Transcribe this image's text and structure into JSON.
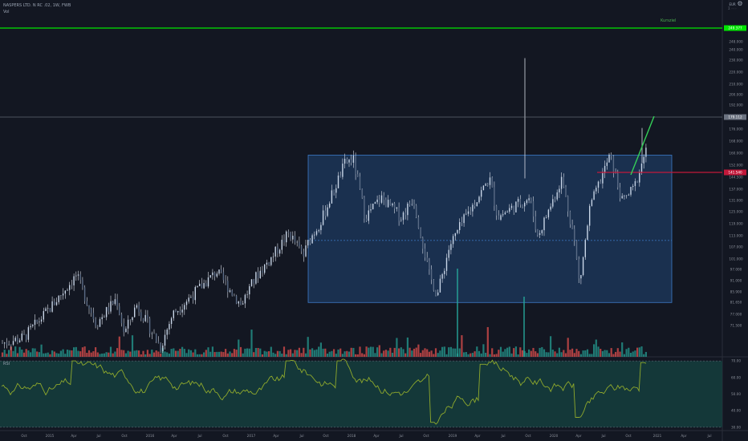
{
  "header": {
    "symbol": "NASPERS LTD. N RC .02, 1W, FWB",
    "volume_label": "Vol"
  },
  "rsi_label": "RSI",
  "currency": {
    "line1": "EUR",
    "line2": "Σ ◦◦◦"
  },
  "kursziel_label": "Kursziel",
  "colors": {
    "background": "#131722",
    "green_line": "#00e600",
    "red_line": "#c2183a",
    "box_fill": "#1e3a5f",
    "box_border": "#3d7cc9",
    "up": "#26a69a",
    "down": "#ef5350",
    "rsi_line": "#8fa92c",
    "rsi_fill": "#153c3c"
  },
  "price_axis": {
    "labels": [
      "248.000",
      "240.000",
      "230.000",
      "220.000",
      "210.000",
      "200.000",
      "192.000",
      "184.000",
      "176.000",
      "168.000",
      "160.000",
      "152.000",
      "144.500",
      "137.000",
      "131.000",
      "125.000",
      "119.000",
      "113.000",
      "107.000",
      "101.000",
      "97.000",
      "91.000",
      "85.900",
      "81.650",
      "77.000",
      "71.500"
    ],
    "badges": [
      {
        "text": "249.377",
        "color": "#00e600"
      },
      {
        "text": "179.112",
        "color": "#6b7280"
      },
      {
        "text": "141.540",
        "color": "#c2183a"
      }
    ]
  },
  "rsi_axis": {
    "labels": [
      "70.00",
      "60.00",
      "50.00",
      "40.00",
      "30.00"
    ]
  },
  "time_axis": {
    "labels": [
      "Oct",
      "2015",
      "Apr",
      "Jul",
      "Oct",
      "2016",
      "Apr",
      "Jul",
      "Oct",
      "2017",
      "Apr",
      "Jul",
      "Oct",
      "2018",
      "Apr",
      "Jul",
      "Oct",
      "2019",
      "Apr",
      "Jul",
      "Oct",
      "2020",
      "Apr",
      "Jul",
      "Oct",
      "2021",
      "Apr",
      "Jul"
    ]
  },
  "chart_data": {
    "type": "candlestick",
    "x_range": [
      "2014-09",
      "2021-08"
    ],
    "y_range": [
      68,
      252
    ],
    "horizontal_levels": [
      {
        "price": 249.377,
        "label": "Kursziel",
        "color": "#00e600"
      },
      {
        "price": 179.112,
        "color": "#6b7280"
      },
      {
        "price": 141.54,
        "color": "#c2183a"
      }
    ],
    "range_box": {
      "from": "2017-08",
      "to": "2021-01",
      "top": 172,
      "bottom": 96,
      "mid": 128
    },
    "rsi": {
      "upper": 70,
      "lower": 30,
      "range": [
        28,
        72
      ]
    }
  }
}
